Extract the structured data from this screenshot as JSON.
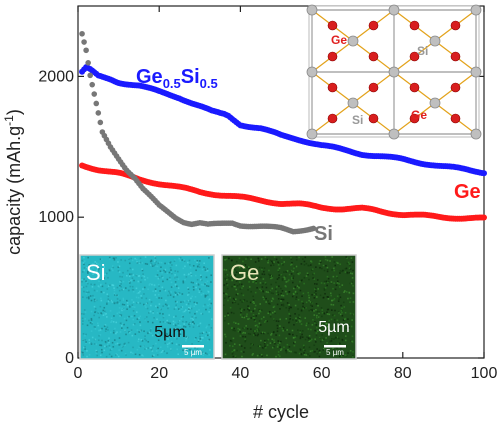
{
  "chart_data": {
    "type": "scatter",
    "xlabel": "# cycle",
    "ylabel": "capacity (mAh.g",
    "ylabel_sup": "-1",
    "ylabel_tail": ")",
    "xlim": [
      0,
      100
    ],
    "ylim": [
      0,
      2500
    ],
    "x_ticks": [
      0,
      20,
      40,
      60,
      80,
      100
    ],
    "y_ticks": [
      0,
      1000,
      2000
    ],
    "grid": false,
    "series": [
      {
        "name": "Ge0.5Si0.5",
        "color": "#1a1aff",
        "points": [
          [
            1,
            2030
          ],
          [
            2,
            2060
          ],
          [
            3,
            2045
          ],
          [
            5,
            2000
          ],
          [
            8,
            1980
          ],
          [
            10,
            1960
          ],
          [
            15,
            1935
          ],
          [
            20,
            1890
          ],
          [
            25,
            1850
          ],
          [
            30,
            1790
          ],
          [
            33,
            1750
          ],
          [
            35,
            1735
          ],
          [
            36,
            1730
          ],
          [
            37,
            1720
          ],
          [
            40,
            1660
          ],
          [
            45,
            1630
          ],
          [
            50,
            1580
          ],
          [
            55,
            1550
          ],
          [
            60,
            1510
          ],
          [
            65,
            1480
          ],
          [
            70,
            1450
          ],
          [
            75,
            1430
          ],
          [
            80,
            1410
          ],
          [
            85,
            1385
          ],
          [
            90,
            1360
          ],
          [
            95,
            1340
          ],
          [
            100,
            1320
          ]
        ]
      },
      {
        "name": "Ge",
        "color": "#ff1a1a",
        "points": [
          [
            1,
            1370
          ],
          [
            5,
            1340
          ],
          [
            10,
            1310
          ],
          [
            15,
            1270
          ],
          [
            20,
            1240
          ],
          [
            25,
            1210
          ],
          [
            30,
            1180
          ],
          [
            35,
            1160
          ],
          [
            40,
            1140
          ],
          [
            45,
            1120
          ],
          [
            50,
            1100
          ],
          [
            55,
            1090
          ],
          [
            60,
            1070
          ],
          [
            65,
            1060
          ],
          [
            70,
            1060
          ],
          [
            73,
            1050
          ],
          [
            75,
            1040
          ],
          [
            80,
            1020
          ],
          [
            85,
            1010
          ],
          [
            90,
            1000
          ],
          [
            95,
            995
          ],
          [
            100,
            990
          ]
        ]
      },
      {
        "name": "Si",
        "color": "#777777",
        "points": [
          [
            1,
            2300
          ],
          [
            2,
            2180
          ],
          [
            3,
            2000
          ],
          [
            6,
            1600
          ],
          [
            8,
            1500
          ],
          [
            10,
            1420
          ],
          [
            12,
            1340
          ],
          [
            14,
            1280
          ],
          [
            16,
            1200
          ],
          [
            18,
            1140
          ],
          [
            20,
            1080
          ],
          [
            22,
            1040
          ],
          [
            24,
            1000
          ],
          [
            26,
            970
          ],
          [
            28,
            955
          ],
          [
            30,
            960
          ],
          [
            32,
            945
          ],
          [
            35,
            950
          ],
          [
            38,
            960
          ],
          [
            40,
            945
          ],
          [
            45,
            935
          ],
          [
            50,
            920
          ],
          [
            53,
            900
          ],
          [
            55,
            910
          ],
          [
            57,
            920
          ],
          [
            58,
            925
          ]
        ]
      }
    ],
    "series_labels": {
      "gesi_base": "Ge",
      "gesi_sub1": "0.5",
      "gesi_mid": "Si",
      "gesi_sub2": "0.5",
      "ge": "Ge",
      "si": "Si"
    },
    "insets": {
      "si_map": {
        "label": "Si",
        "scale_text": "5µm",
        "scale_small": "5 µm",
        "color": "#27b8c4"
      },
      "ge_map": {
        "label": "Ge",
        "scale_text": "5µm",
        "scale_small": "5 µm",
        "color": "#1f4d1a"
      },
      "lattice": {
        "labels": [
          "Ge",
          "Si",
          "Si",
          "Ge"
        ]
      }
    }
  }
}
